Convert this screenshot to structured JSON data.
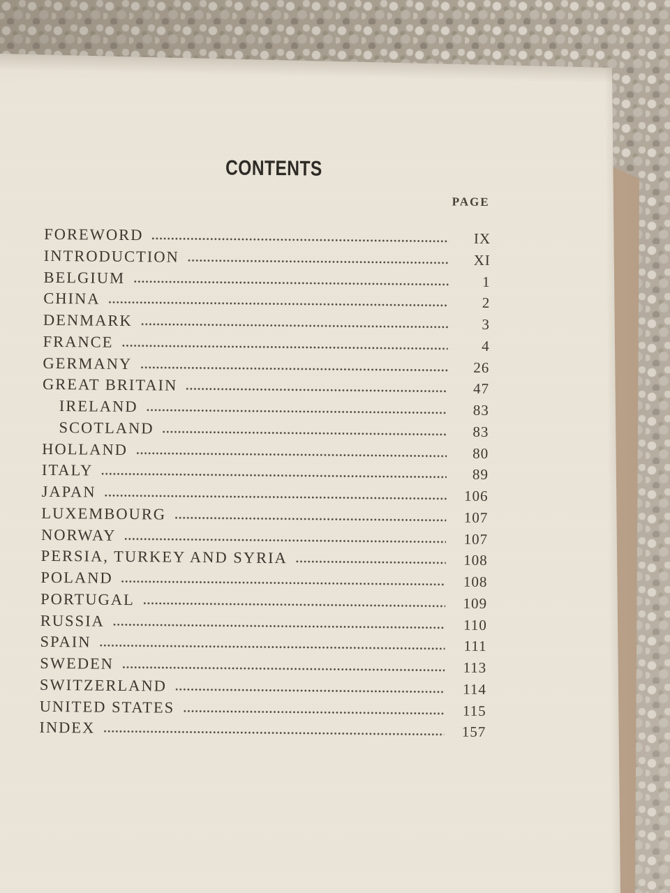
{
  "colors": {
    "paper": "#ebe5d9",
    "ink": "#3b372f",
    "title_ink": "#2e2b26",
    "carpet": "#aba294",
    "carpet_light": "#d8d2c8",
    "carpet_dark": "#8d8478",
    "under_page": "#c7ae97"
  },
  "toc": {
    "title": "CONTENTS",
    "page_column_label": "PAGE",
    "entries": [
      {
        "label": "FOREWORD",
        "page": "IX",
        "indent": false
      },
      {
        "label": "INTRODUCTION",
        "page": "XI",
        "indent": false
      },
      {
        "label": "BELGIUM",
        "page": "1",
        "indent": false
      },
      {
        "label": "CHINA",
        "page": "2",
        "indent": false
      },
      {
        "label": "DENMARK",
        "page": "3",
        "indent": false
      },
      {
        "label": "FRANCE",
        "page": "4",
        "indent": false
      },
      {
        "label": "GERMANY",
        "page": "26",
        "indent": false
      },
      {
        "label": "GREAT BRITAIN",
        "page": "47",
        "indent": false
      },
      {
        "label": "IRELAND",
        "page": "83",
        "indent": true
      },
      {
        "label": "SCOTLAND",
        "page": "83",
        "indent": true
      },
      {
        "label": "HOLLAND",
        "page": "80",
        "indent": false
      },
      {
        "label": "ITALY",
        "page": "89",
        "indent": false
      },
      {
        "label": "JAPAN",
        "page": "106",
        "indent": false
      },
      {
        "label": "LUXEMBOURG",
        "page": "107",
        "indent": false
      },
      {
        "label": "NORWAY",
        "page": "107",
        "indent": false
      },
      {
        "label": "PERSIA, TURKEY AND SYRIA",
        "page": "108",
        "indent": false
      },
      {
        "label": "POLAND",
        "page": "108",
        "indent": false
      },
      {
        "label": "PORTUGAL",
        "page": "109",
        "indent": false
      },
      {
        "label": "RUSSIA",
        "page": "110",
        "indent": false
      },
      {
        "label": "SPAIN",
        "page": "111",
        "indent": false
      },
      {
        "label": "SWEDEN",
        "page": "113",
        "indent": false
      },
      {
        "label": "SWITZERLAND",
        "page": "114",
        "indent": false
      },
      {
        "label": "UNITED STATES",
        "page": "115",
        "indent": false
      },
      {
        "label": "INDEX",
        "page": "157",
        "indent": false
      }
    ]
  }
}
